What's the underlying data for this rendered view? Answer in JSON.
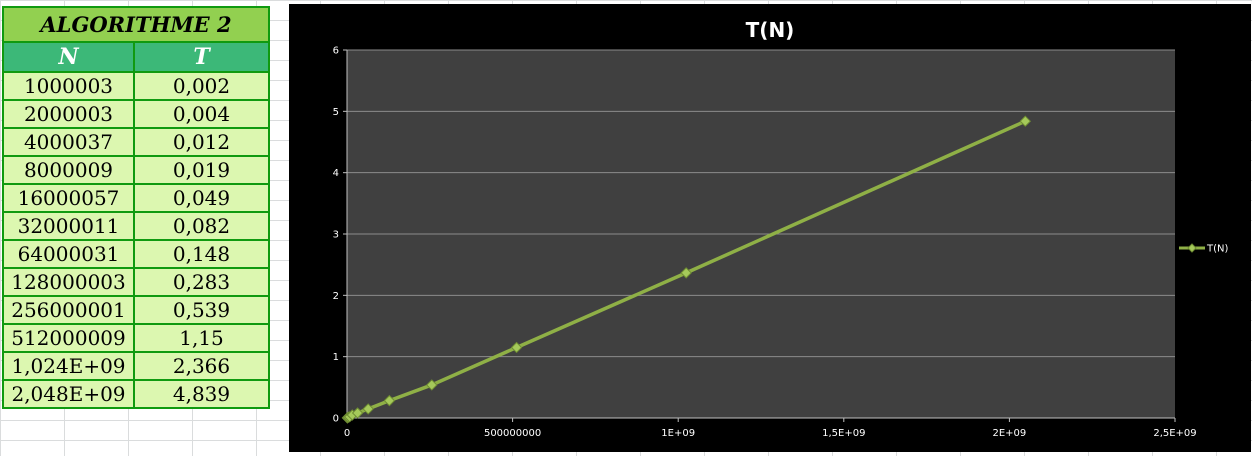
{
  "table": {
    "title": "ALGORITHME 2",
    "headers": [
      "N",
      "T"
    ],
    "rows": [
      [
        "1000003",
        "0,002"
      ],
      [
        "2000003",
        "0,004"
      ],
      [
        "4000037",
        "0,012"
      ],
      [
        "8000009",
        "0,019"
      ],
      [
        "16000057",
        "0,049"
      ],
      [
        "32000011",
        "0,082"
      ],
      [
        "64000031",
        "0,148"
      ],
      [
        "128000003",
        "0,283"
      ],
      [
        "256000001",
        "0,539"
      ],
      [
        "512000009",
        "1,15"
      ],
      [
        "1,024E+09",
        "2,366"
      ],
      [
        "2,048E+09",
        "4,839"
      ]
    ]
  },
  "chart_data": {
    "type": "line",
    "title": "T(N)",
    "xlabel": "",
    "ylabel": "",
    "xlim": [
      0,
      2500000000
    ],
    "ylim": [
      0,
      6
    ],
    "x_ticks": [
      0,
      500000000,
      1000000000,
      1500000000,
      2000000000,
      2500000000
    ],
    "x_tick_labels": [
      "0",
      "500000000",
      "1E+09",
      "1,5E+09",
      "2E+09",
      "2,5E+09"
    ],
    "y_ticks": [
      0,
      1,
      2,
      3,
      4,
      5,
      6
    ],
    "y_tick_labels": [
      "0",
      "1",
      "2",
      "3",
      "4",
      "5",
      "6"
    ],
    "grid": true,
    "legend": "right",
    "series": [
      {
        "name": "T(N)",
        "color": "#8fb046",
        "x": [
          1000003,
          2000003,
          4000037,
          8000009,
          16000057,
          32000011,
          64000031,
          128000003,
          256000001,
          512000009,
          1024000000,
          2048000000
        ],
        "y": [
          0.002,
          0.004,
          0.012,
          0.019,
          0.049,
          0.082,
          0.148,
          0.283,
          0.539,
          1.15,
          2.366,
          4.839
        ]
      }
    ]
  },
  "colors": {
    "plot_bg": "#404040",
    "chart_bg": "#000000",
    "gridline": "#8c8c8c"
  }
}
